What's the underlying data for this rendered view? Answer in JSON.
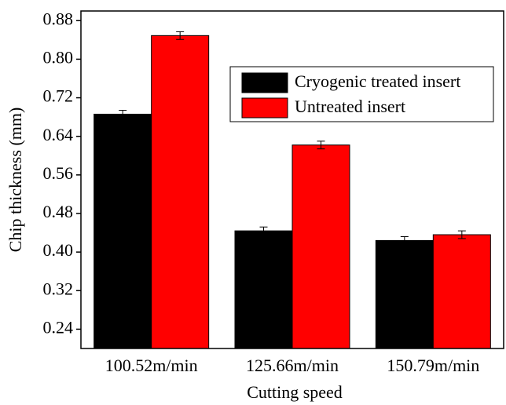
{
  "chart_data": {
    "type": "bar",
    "x_label": "Cutting speed",
    "y_label": "Chip thickness (mm)",
    "categories": [
      "100.52m/min",
      "125.66m/min",
      "150.79m/min"
    ],
    "series": [
      {
        "name": "Cryogenic treated insert",
        "color": "#000000",
        "values": [
          0.686,
          0.444,
          0.424
        ],
        "errors": [
          0.008,
          0.008,
          0.008
        ]
      },
      {
        "name": "Untreated insert",
        "color": "#ff0000",
        "values": [
          0.849,
          0.622,
          0.436
        ],
        "errors": [
          0.008,
          0.008,
          0.008
        ]
      }
    ],
    "ylim": [
      0.2,
      0.9
    ],
    "yticks": [
      0.24,
      0.32,
      {
        "value": 0.4,
        "label": "0.40"
      },
      0.48,
      0.56,
      0.64,
      0.72,
      {
        "value": 0.8,
        "label": "0.80"
      },
      0.88
    ],
    "legend": "upper right"
  }
}
